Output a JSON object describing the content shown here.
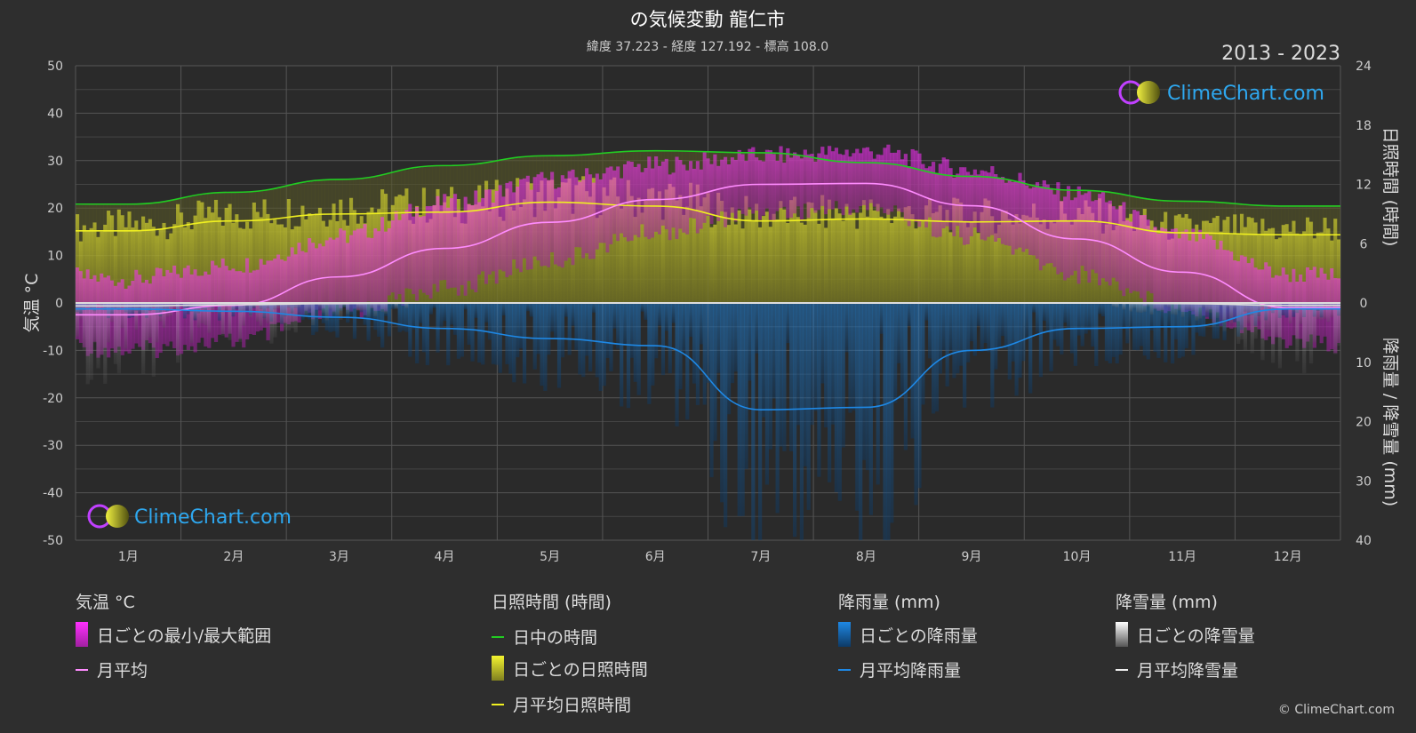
{
  "title": "の気候変動 龍仁市",
  "subtitle": "緯度 37.223 - 経度 127.192 - 標高 108.0",
  "period": "2013 - 2023",
  "brand": "ClimeChart.com",
  "copyright": "© ClimeChart.com",
  "colors": {
    "background": "#2e2e2e",
    "temp_range": "#e838e0",
    "temp_avg": "#ff8cff",
    "daylight": "#22cc22",
    "sunshine_bar": "#c8c832",
    "sunshine_avg": "#f0f020",
    "rain": "#1e88e5",
    "snow": "#dddddd"
  },
  "chart_data": {
    "type": "line",
    "months": [
      "1月",
      "2月",
      "3月",
      "4月",
      "5月",
      "6月",
      "7月",
      "8月",
      "9月",
      "10月",
      "11月",
      "12月"
    ],
    "y_left": {
      "label": "気温 °C",
      "range": [
        -50,
        50
      ],
      "ticks": [
        50,
        40,
        30,
        20,
        10,
        0,
        -10,
        -20,
        -30,
        -40,
        -50
      ]
    },
    "y_right_top": {
      "label": "日照時間 (時間)",
      "range": [
        0,
        24
      ],
      "ticks": [
        24,
        18,
        12,
        6,
        0
      ]
    },
    "y_right_bottom": {
      "label": "降雨量 / 降雪量 (mm)",
      "range": [
        0,
        40
      ],
      "ticks": [
        0,
        10,
        20,
        30,
        40
      ]
    },
    "series": [
      {
        "name": "月平均",
        "unit": "°C",
        "values": [
          -2.5,
          -0.5,
          5.5,
          11.5,
          17.0,
          21.8,
          25.0,
          25.2,
          20.5,
          13.5,
          6.5,
          -1.0
        ]
      },
      {
        "name": "日ごとの最小/最大範囲",
        "unit": "°C",
        "min": [
          -8,
          -6,
          0,
          5,
          11,
          17,
          21,
          22,
          16,
          8,
          1,
          -6
        ],
        "max": [
          3,
          6,
          12,
          19,
          24,
          27,
          29,
          30,
          26,
          21,
          12,
          4
        ]
      },
      {
        "name": "日中の時間",
        "unit": "時間",
        "values": [
          10.0,
          11.2,
          12.5,
          13.9,
          14.9,
          15.4,
          15.2,
          14.2,
          12.8,
          11.4,
          10.3,
          9.8
        ]
      },
      {
        "name": "月平均日照時間",
        "unit": "時間",
        "values": [
          7.3,
          8.3,
          9.0,
          9.2,
          10.2,
          9.8,
          8.3,
          8.5,
          8.2,
          8.3,
          7.1,
          6.9
        ]
      },
      {
        "name": "月平均降雨量",
        "unit": "mm",
        "values": [
          1.0,
          1.4,
          2.4,
          4.3,
          6.0,
          7.2,
          18.0,
          17.6,
          8.0,
          4.3,
          4.0,
          1.0
        ]
      },
      {
        "name": "月平均降雪量",
        "unit": "mm",
        "values": [
          0.5,
          0.3,
          0.1,
          0,
          0,
          0,
          0,
          0,
          0,
          0,
          0.1,
          0.4
        ]
      }
    ]
  },
  "legend": {
    "temperature": {
      "title": "気温 °C",
      "items": [
        "日ごとの最小/最大範囲",
        "月平均"
      ]
    },
    "sunshine": {
      "title": "日照時間 (時間)",
      "items": [
        "日中の時間",
        "日ごとの日照時間",
        "月平均日照時間"
      ]
    },
    "rain": {
      "title": "降雨量 (mm)",
      "items": [
        "日ごとの降雨量",
        "月平均降雨量"
      ]
    },
    "snow": {
      "title": "降雪量 (mm)",
      "items": [
        "日ごとの降雪量",
        "月平均降雪量"
      ]
    }
  }
}
